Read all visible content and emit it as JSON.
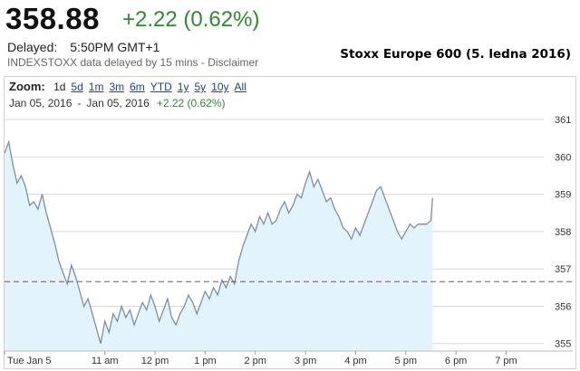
{
  "quote": {
    "price": "358.88",
    "change": "+2.22 (0.62%)",
    "delayed_label": "Delayed:",
    "delayed_time": "5:50PM GMT+1",
    "source_note": "INDEXSTOXX data delayed by 15 mins - Disclaimer"
  },
  "chart_title": "Stoxx Europe 600 (5. ledna 2016)",
  "toolbar": {
    "zoom_label": "Zoom:",
    "zoom_options": [
      "1d",
      "5d",
      "1m",
      "3m",
      "6m",
      "YTD",
      "1y",
      "5y",
      "10y",
      "All"
    ],
    "active_zoom": "1d"
  },
  "date_range": {
    "from": "Jan 05, 2016",
    "separator": "-",
    "to": "Jan 05, 2016",
    "change": "+2.22 (0.62%)"
  },
  "colors": {
    "line": "#7a8fa6",
    "area_fill": "#e3f3fb",
    "reference_line": "#b03a3a",
    "gridline": "#d9d9d9",
    "change_positive": "#2e8b2e"
  },
  "chart_data": {
    "type": "area",
    "x_tick_labels": [
      "Tue Jan 5",
      "11 am",
      "12 pm",
      "1 pm",
      "2 pm",
      "3 pm",
      "4 pm",
      "5 pm",
      "6 pm",
      "7 pm"
    ],
    "y_tick_labels": [
      "355",
      "356",
      "357",
      "358",
      "359",
      "360",
      "361"
    ],
    "ylim": [
      354.8,
      361.1
    ],
    "xlim": [
      "09:00",
      "19:45"
    ],
    "previous_close": 356.66,
    "grid": "horizontal",
    "series": [
      {
        "x": [
          "09:00",
          "09:05",
          "09:10",
          "09:15",
          "09:20",
          "09:25",
          "09:30",
          "09:35",
          "09:40",
          "09:45",
          "09:50",
          "09:55",
          "10:00",
          "10:05",
          "10:10",
          "10:15",
          "10:20",
          "10:25",
          "10:30",
          "10:35",
          "10:40",
          "10:45",
          "10:50",
          "10:55",
          "11:00",
          "11:05",
          "11:10",
          "11:15",
          "11:20",
          "11:25",
          "11:30",
          "11:35",
          "11:40",
          "11:45",
          "11:50",
          "11:55",
          "12:00",
          "12:05",
          "12:10",
          "12:15",
          "12:20",
          "12:25",
          "12:30",
          "12:35",
          "12:40",
          "12:45",
          "12:50",
          "12:55",
          "13:00",
          "13:05",
          "13:10",
          "13:15",
          "13:20",
          "13:25",
          "13:30",
          "13:35",
          "13:40",
          "13:45",
          "13:50",
          "13:55",
          "14:00",
          "14:05",
          "14:10",
          "14:15",
          "14:20",
          "14:25",
          "14:30",
          "14:35",
          "14:40",
          "14:45",
          "14:50",
          "14:55",
          "15:00",
          "15:05",
          "15:10",
          "15:15",
          "15:20",
          "15:25",
          "15:30",
          "15:35",
          "15:40",
          "15:45",
          "15:50",
          "15:55",
          "16:00",
          "16:05",
          "16:10",
          "16:15",
          "16:20",
          "16:25",
          "16:30",
          "16:35",
          "16:40",
          "16:45",
          "16:50",
          "16:55",
          "17:00",
          "17:05",
          "17:10",
          "17:15",
          "17:20",
          "17:25",
          "17:30",
          "17:32"
        ],
        "values": [
          360.1,
          360.4,
          359.8,
          359.3,
          359.5,
          359.2,
          358.7,
          358.8,
          358.6,
          359.0,
          358.5,
          358.1,
          357.7,
          357.2,
          356.9,
          356.6,
          357.1,
          356.8,
          356.4,
          356.0,
          356.2,
          355.8,
          355.4,
          355.0,
          355.6,
          355.3,
          355.8,
          355.6,
          356.0,
          355.7,
          355.9,
          355.5,
          355.8,
          356.1,
          355.9,
          356.3,
          356.0,
          355.6,
          355.9,
          356.2,
          355.7,
          355.5,
          355.8,
          356.0,
          356.3,
          356.1,
          355.8,
          356.1,
          356.4,
          356.2,
          356.5,
          356.3,
          356.7,
          356.5,
          356.8,
          356.6,
          357.2,
          357.6,
          357.9,
          358.2,
          358.0,
          358.4,
          358.2,
          358.5,
          358.2,
          358.3,
          358.6,
          358.8,
          358.5,
          358.7,
          359.0,
          358.9,
          359.3,
          359.6,
          359.2,
          359.4,
          359.1,
          358.8,
          358.9,
          358.6,
          358.4,
          358.1,
          358.0,
          357.8,
          358.1,
          357.9,
          358.2,
          358.5,
          358.8,
          359.1,
          359.2,
          358.9,
          358.6,
          358.3,
          358.0,
          357.8,
          358.0,
          358.2,
          358.1,
          358.2,
          358.2,
          358.2,
          358.3,
          358.9
        ]
      }
    ]
  }
}
